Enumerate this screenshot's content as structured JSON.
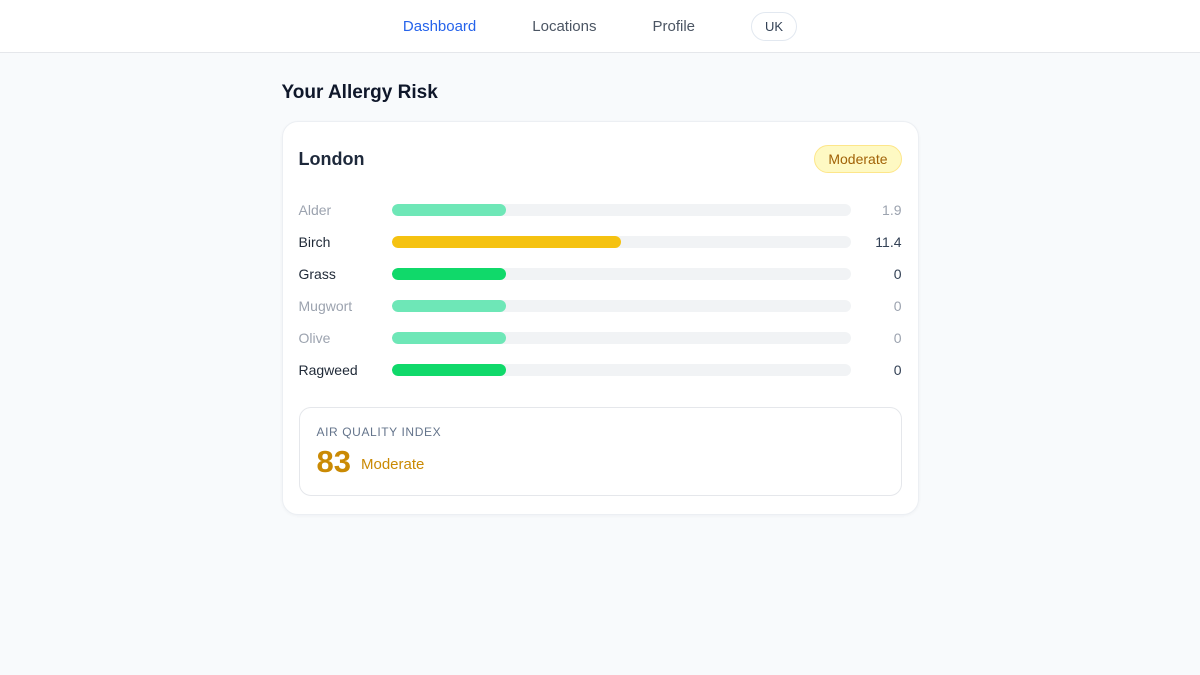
{
  "nav": {
    "items": [
      {
        "label": "Dashboard",
        "active": true
      },
      {
        "label": "Locations",
        "active": false
      },
      {
        "label": "Profile",
        "active": false
      }
    ],
    "region_label": "UK"
  },
  "page": {
    "title": "Your Allergy Risk"
  },
  "card": {
    "city": "London",
    "risk_badge": "Moderate",
    "allergens": [
      {
        "name": "Alder",
        "value": "1.9",
        "bar_pct": 25,
        "bar_color": "#6ee7b7",
        "muted": true
      },
      {
        "name": "Birch",
        "value": "11.4",
        "bar_pct": 50,
        "bar_color": "#f5c211",
        "muted": false
      },
      {
        "name": "Grass",
        "value": "0",
        "bar_pct": 25,
        "bar_color": "#10d96a",
        "muted": false
      },
      {
        "name": "Mugwort",
        "value": "0",
        "bar_pct": 25,
        "bar_color": "#6ee7b7",
        "muted": true
      },
      {
        "name": "Olive",
        "value": "0",
        "bar_pct": 25,
        "bar_color": "#6ee7b7",
        "muted": true
      },
      {
        "name": "Ragweed",
        "value": "0",
        "bar_pct": 25,
        "bar_color": "#10d96a",
        "muted": false
      }
    ],
    "aqi": {
      "label": "AIR QUALITY INDEX",
      "value": "83",
      "status": "Moderate"
    }
  },
  "colors": {
    "nav_active": "#2563eb",
    "badge_bg": "#fef9c3",
    "badge_border": "#fde68a",
    "badge_text": "#a16207",
    "bar_track": "#f1f3f5",
    "bar_green": "#10d96a",
    "bar_green_muted": "#6ee7b7",
    "bar_yellow": "#f5c211",
    "aqi_text": "#ca8a04",
    "page_bg": "#f8fafc"
  }
}
